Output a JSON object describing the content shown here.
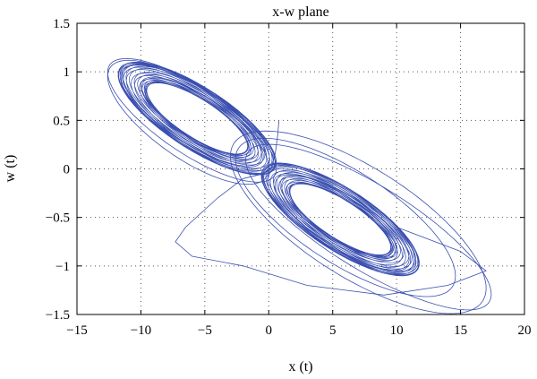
{
  "chart_data": {
    "type": "line",
    "title": "x-w plane",
    "xlabel": "x (t)",
    "ylabel": "w (t)",
    "xlim": [
      -15,
      20
    ],
    "ylim": [
      -1.5,
      1.5
    ],
    "xticks": [
      -15,
      -10,
      -5,
      0,
      5,
      10,
      15,
      20
    ],
    "yticks": [
      -1.5,
      -1,
      -0.5,
      0,
      0.5,
      1,
      1.5
    ],
    "xtick_labels": [
      "−15",
      "−10",
      "−5",
      "0",
      "5",
      "10",
      "15",
      "20"
    ],
    "ytick_labels": [
      "−1.5",
      "−1",
      "−0.5",
      "0",
      "0.5",
      "1",
      "1.5"
    ],
    "grid": true,
    "grid_style": "dotted",
    "line_color": "#3a4fb0",
    "series": [
      {
        "style": "double-scroll attractor trajectory",
        "upper_lobe": {
          "center": [
            -5.5,
            0.55
          ],
          "x_range": [
            -12.7,
            0.9
          ],
          "w_range": [
            0.05,
            0.98
          ]
        },
        "lower_lobe": {
          "center": [
            5.5,
            -0.55
          ],
          "x_range": [
            -0.9,
            17.2
          ],
          "w_range": [
            -1.3,
            -0.05
          ]
        }
      }
    ]
  }
}
